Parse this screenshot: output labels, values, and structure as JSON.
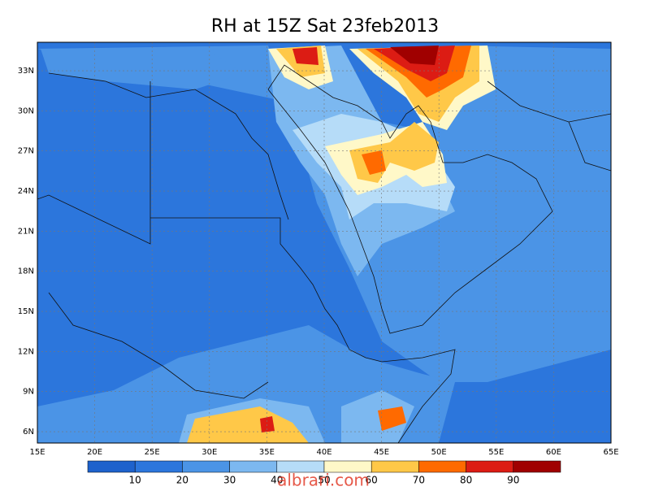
{
  "map": {
    "title": "RH at 15Z Sat 23feb2013",
    "xlim": [
      15,
      65
    ],
    "ylim": [
      5.15,
      35.13
    ],
    "xticks": [
      {
        "value": 15,
        "label": "15E"
      },
      {
        "value": 20,
        "label": "20E"
      },
      {
        "value": 25,
        "label": "25E"
      },
      {
        "value": 30,
        "label": "30E"
      },
      {
        "value": 35,
        "label": "35E"
      },
      {
        "value": 40,
        "label": "40E"
      },
      {
        "value": 45,
        "label": "45E"
      },
      {
        "value": 50,
        "label": "50E"
      },
      {
        "value": 55,
        "label": "55E"
      },
      {
        "value": 60,
        "label": "60E"
      },
      {
        "value": 65,
        "label": "65E"
      }
    ],
    "yticks": [
      {
        "value": 6,
        "label": "6N"
      },
      {
        "value": 9,
        "label": "9N"
      },
      {
        "value": 12,
        "label": "12N"
      },
      {
        "value": 15,
        "label": "15N"
      },
      {
        "value": 18,
        "label": "18N"
      },
      {
        "value": 21,
        "label": "21N"
      },
      {
        "value": 24,
        "label": "24N"
      },
      {
        "value": 27,
        "label": "27N"
      },
      {
        "value": 30,
        "label": "30N"
      },
      {
        "value": 33,
        "label": "33N"
      }
    ],
    "colorbar": {
      "levels": [
        10,
        20,
        30,
        40,
        50,
        60,
        70,
        80,
        90
      ],
      "colors": [
        "#1e62cc",
        "#2c76dc",
        "#4b94e6",
        "#7cb8f0",
        "#b6dcf8",
        "#fff8c8",
        "#ffc848",
        "#ff6a00",
        "#dc1c14",
        "#a00000"
      ]
    },
    "watermark": "albrari.com"
  }
}
